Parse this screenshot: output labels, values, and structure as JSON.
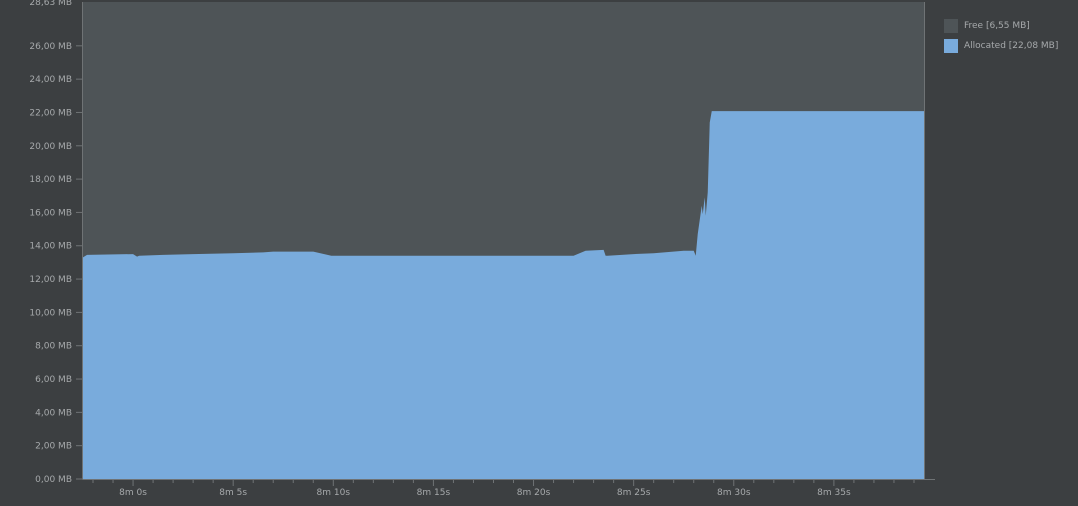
{
  "colors": {
    "background": "#3c3f41",
    "plot_background": "#4e5457",
    "free": "#4e5457",
    "allocated": "#79abdc",
    "axis": "#6f7375",
    "text": "#a6a9ab"
  },
  "chart_data": {
    "type": "area",
    "title": "",
    "xlabel": "",
    "ylabel": "",
    "ylim_mb": [
      0,
      28.63
    ],
    "xlim_s": [
      477.5,
      519.5
    ],
    "y_top_label": "28,63 MB",
    "y_ticks": [
      {
        "value": 0,
        "label": "0,00 MB"
      },
      {
        "value": 2,
        "label": "2,00 MB"
      },
      {
        "value": 4,
        "label": "4,00 MB"
      },
      {
        "value": 6,
        "label": "6,00 MB"
      },
      {
        "value": 8,
        "label": "8,00 MB"
      },
      {
        "value": 10,
        "label": "10,00 MB"
      },
      {
        "value": 12,
        "label": "12,00 MB"
      },
      {
        "value": 14,
        "label": "14,00 MB"
      },
      {
        "value": 16,
        "label": "16,00 MB"
      },
      {
        "value": 18,
        "label": "18,00 MB"
      },
      {
        "value": 20,
        "label": "20,00 MB"
      },
      {
        "value": 22,
        "label": "22,00 MB"
      },
      {
        "value": 24,
        "label": "24,00 MB"
      },
      {
        "value": 26,
        "label": "26,00 MB"
      }
    ],
    "x_ticks": [
      {
        "value": 480,
        "label": "8m 0s"
      },
      {
        "value": 485,
        "label": "8m 5s"
      },
      {
        "value": 490,
        "label": "8m 10s"
      },
      {
        "value": 495,
        "label": "8m 15s"
      },
      {
        "value": 500,
        "label": "8m 20s"
      },
      {
        "value": 505,
        "label": "8m 25s"
      },
      {
        "value": 510,
        "label": "8m 30s"
      },
      {
        "value": 515,
        "label": "8m 35s"
      }
    ],
    "series": [
      {
        "name": "Allocated",
        "legend_label": "Allocated [22,08 MB]",
        "color": "#79abdc",
        "x": [
          477.5,
          477.7,
          480.0,
          480.2,
          480.3,
          481.5,
          483.0,
          485.0,
          486.5,
          487.0,
          489.0,
          489.9,
          491.0,
          495.0,
          502.0,
          502.6,
          503.5,
          503.6,
          503.7,
          505.0,
          506.0,
          507.5,
          508.0,
          508.1,
          508.2,
          508.4,
          508.45,
          508.55,
          508.6,
          508.7,
          508.8,
          508.9,
          509.0,
          519.5
        ],
        "y": [
          13.3,
          13.45,
          13.5,
          13.35,
          13.4,
          13.45,
          13.5,
          13.55,
          13.6,
          13.65,
          13.65,
          13.4,
          13.4,
          13.4,
          13.4,
          13.7,
          13.75,
          13.4,
          13.4,
          13.5,
          13.55,
          13.7,
          13.7,
          13.4,
          14.7,
          16.4,
          15.9,
          16.9,
          15.8,
          17.2,
          21.4,
          22.08,
          22.08,
          22.08
        ]
      }
    ],
    "free": {
      "name": "Free",
      "legend_label": "Free [6,55 MB]",
      "color": "#4e5457"
    },
    "legend_position": "top-right"
  }
}
